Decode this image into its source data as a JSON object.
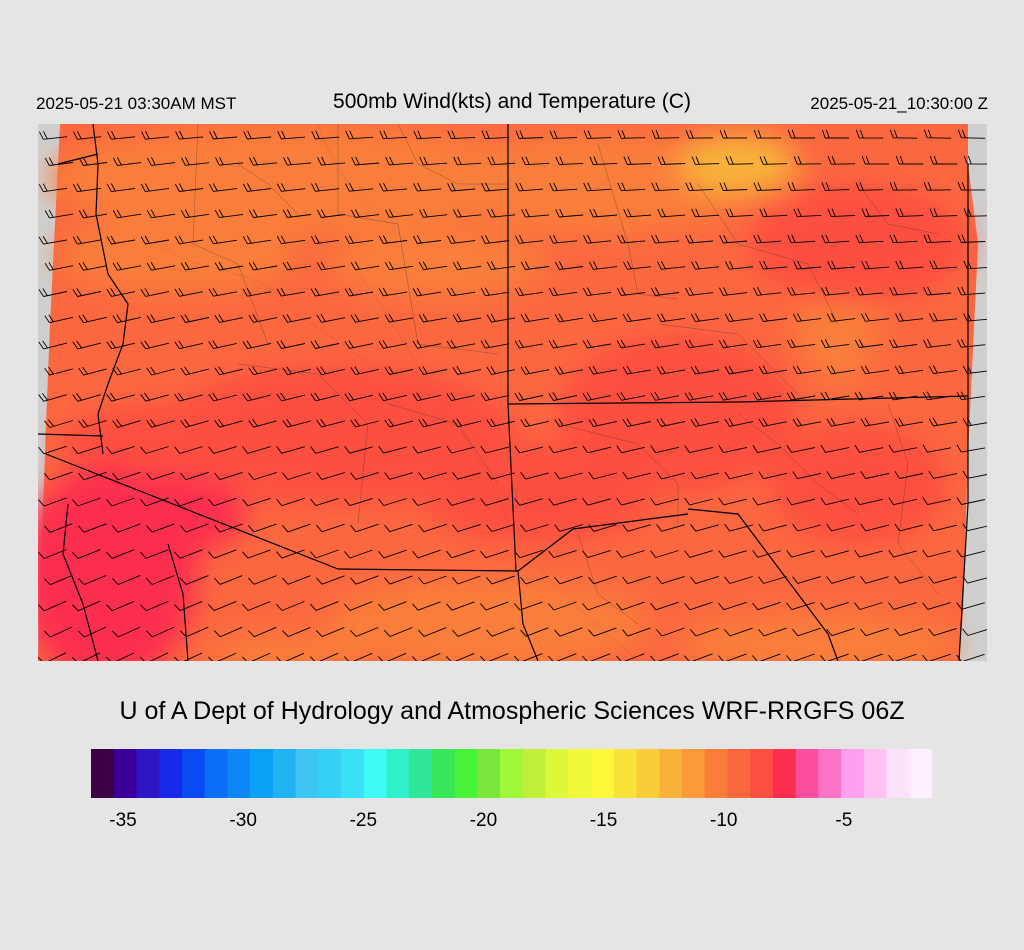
{
  "header": {
    "left": "2025-05-21 03:30AM MST",
    "title": "500mb Wind(kts) and Temperature (C)",
    "right": "2025-05-21_10:30:00 Z"
  },
  "footer": {
    "credit": "U of A Dept of Hydrology and Atmospheric Sciences WRF-RRGFS 06Z"
  },
  "colorbar": {
    "min": -36,
    "max": -1,
    "step": 1,
    "tick_labels": [
      "-35",
      "-30",
      "-25",
      "-20",
      "-15",
      "-10",
      "-5"
    ],
    "tick_values": [
      -35,
      -30,
      -25,
      -20,
      -15,
      -10,
      -5
    ],
    "colors": [
      "#3b0046",
      "#3a0099",
      "#2d16c6",
      "#1929e8",
      "#0a4af2",
      "#0a6ef7",
      "#0d86f6",
      "#0aa0f5",
      "#22b2f2",
      "#40c4f4",
      "#36d0f6",
      "#3ae0f6",
      "#3ffbf6",
      "#2ff0c8",
      "#2fe69a",
      "#38e65a",
      "#48f238",
      "#7ae63a",
      "#a0f83a",
      "#c2ef3a",
      "#dcf83a",
      "#f0f83a",
      "#fef83a",
      "#f9e23a",
      "#f9cc3a",
      "#f8b23a",
      "#fb9a3a",
      "#fa7e3a",
      "#fb6840",
      "#fd5040",
      "#fc2e50",
      "#fb4ea0",
      "#fb74c8",
      "#fda0f0",
      "#fdc2f2",
      "#fde2fa",
      "#fff0ff"
    ]
  },
  "map": {
    "background_color": "#cfcfcf",
    "dominant_colors": {
      "temp_-12_to_-11": "#fa7e3a",
      "temp_-11_to_-10": "#fb6840",
      "temp_-10_to_-9": "#fd5040",
      "temp_-9_to_-8": "#fc2e50"
    },
    "wind_barb_color": "#000000",
    "border_color": "#000000"
  }
}
